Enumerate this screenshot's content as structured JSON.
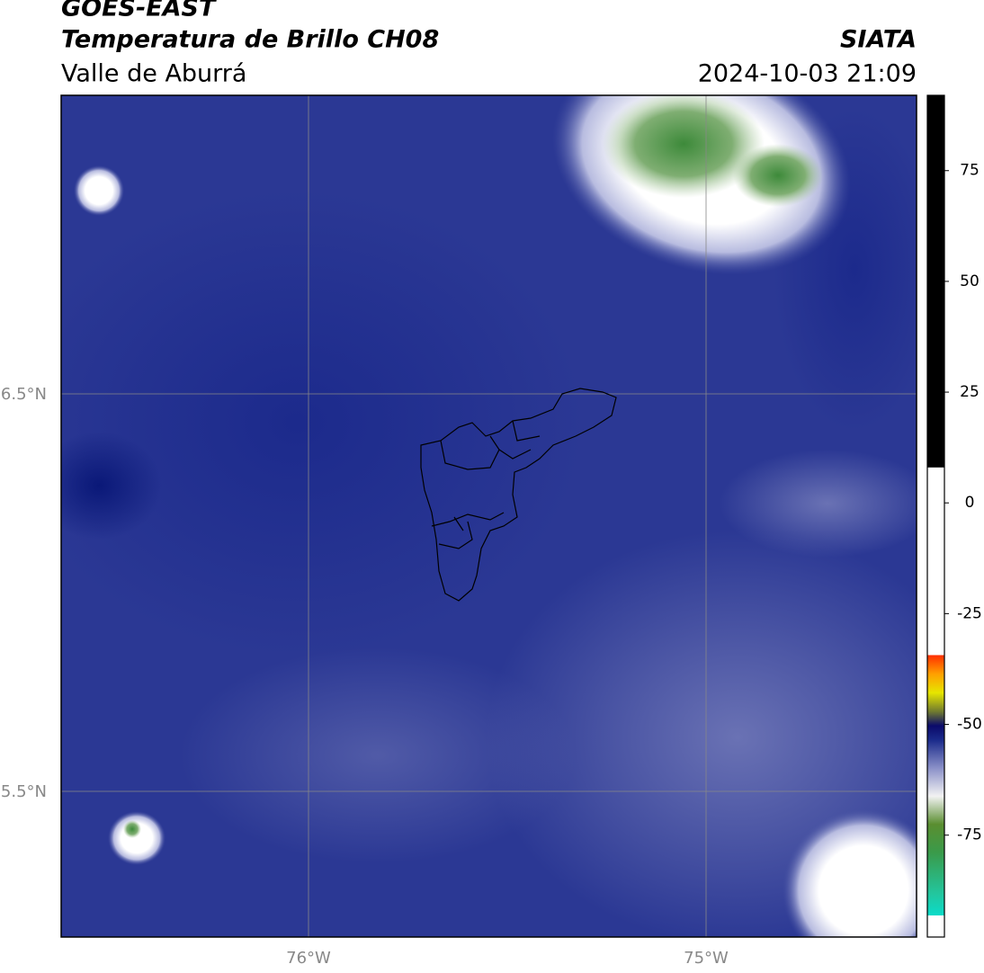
{
  "header": {
    "title": "GOES-EAST",
    "subtitle": "Temperatura de Brillo CH08",
    "region": "Valle de Aburrá",
    "source": "SIATA",
    "timestamp": "2024-10-03 21:09"
  },
  "map": {
    "lat_labels": [
      "6.5°N",
      "5.5°N"
    ],
    "lon_labels": [
      "76°W",
      "75°W"
    ]
  },
  "colorbar": {
    "lim": [
      -98,
      92
    ],
    "ticks": [
      75,
      50,
      25,
      0,
      -25,
      -50,
      -75
    ]
  }
}
